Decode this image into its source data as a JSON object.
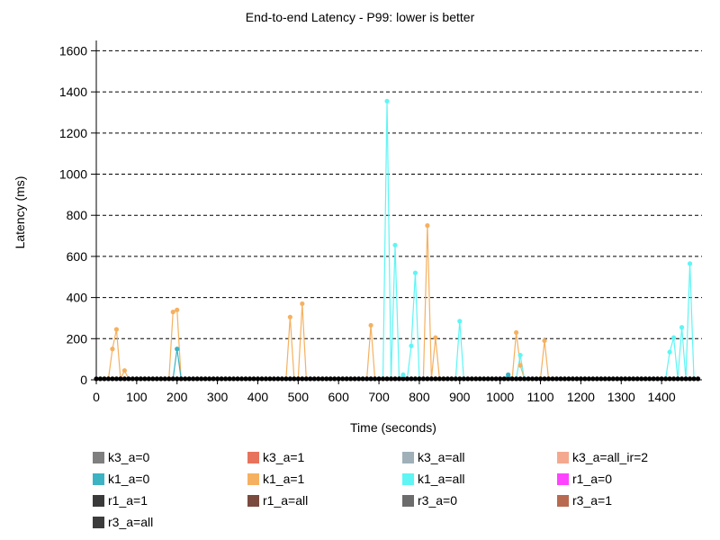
{
  "chart_data": {
    "type": "line",
    "title": "End-to-end Latency - P99: lower is better",
    "xlabel": "Time (seconds)",
    "ylabel": "Latency (ms)",
    "xlim": [
      0,
      1500
    ],
    "ylim": [
      0,
      1650
    ],
    "xticks": [
      0,
      100,
      200,
      300,
      400,
      500,
      600,
      700,
      800,
      900,
      1000,
      1100,
      1200,
      1300,
      1400
    ],
    "yticks": [
      0,
      200,
      400,
      600,
      800,
      1000,
      1200,
      1400,
      1600
    ],
    "grid": "horizontal dashed",
    "baseline": {
      "x_start": 0,
      "x_end": 1490,
      "x_step": 10,
      "value": 5
    },
    "series": [
      {
        "name": "k3_a=0",
        "color": "#7f7f7f",
        "points": []
      },
      {
        "name": "k3_a=1",
        "color": "#e8735c",
        "points": []
      },
      {
        "name": "k3_a=all",
        "color": "#9fb0b8",
        "points": []
      },
      {
        "name": "k3_a=all_ir=2",
        "color": "#f4a98f",
        "points": []
      },
      {
        "name": "k1_a=0",
        "color": "#3bb3c3",
        "points": [
          [
            190,
            5
          ],
          [
            200,
            150
          ],
          [
            210,
            5
          ],
          [
            1010,
            5
          ],
          [
            1020,
            25
          ],
          [
            1030,
            5
          ]
        ]
      },
      {
        "name": "k1_a=1",
        "color": "#f5b160",
        "points": [
          [
            30,
            5
          ],
          [
            40,
            150
          ],
          [
            50,
            245
          ],
          [
            60,
            5
          ],
          [
            70,
            45
          ],
          [
            80,
            5
          ],
          [
            180,
            5
          ],
          [
            190,
            330
          ],
          [
            200,
            340
          ],
          [
            210,
            5
          ],
          [
            470,
            5
          ],
          [
            480,
            305
          ],
          [
            490,
            5
          ],
          [
            500,
            5
          ],
          [
            510,
            370
          ],
          [
            520,
            5
          ],
          [
            670,
            5
          ],
          [
            680,
            265
          ],
          [
            690,
            5
          ],
          [
            810,
            5
          ],
          [
            820,
            750
          ],
          [
            830,
            5
          ],
          [
            840,
            205
          ],
          [
            850,
            5
          ],
          [
            1030,
            5
          ],
          [
            1040,
            230
          ],
          [
            1050,
            70
          ],
          [
            1060,
            5
          ],
          [
            1100,
            5
          ],
          [
            1110,
            190
          ],
          [
            1120,
            5
          ]
        ]
      },
      {
        "name": "k1_a=all",
        "color": "#5ff5f5",
        "points": [
          [
            710,
            5
          ],
          [
            720,
            1355
          ],
          [
            730,
            5
          ],
          [
            740,
            655
          ],
          [
            750,
            5
          ],
          [
            760,
            25
          ],
          [
            770,
            5
          ],
          [
            780,
            165
          ],
          [
            790,
            520
          ],
          [
            800,
            5
          ],
          [
            890,
            5
          ],
          [
            900,
            285
          ],
          [
            910,
            5
          ],
          [
            1040,
            5
          ],
          [
            1050,
            120
          ],
          [
            1060,
            5
          ],
          [
            1410,
            5
          ],
          [
            1420,
            135
          ],
          [
            1430,
            205
          ],
          [
            1440,
            5
          ],
          [
            1450,
            255
          ],
          [
            1460,
            5
          ],
          [
            1470,
            565
          ],
          [
            1480,
            5
          ]
        ]
      },
      {
        "name": "r1_a=0",
        "color": "#ff44ff",
        "points": []
      },
      {
        "name": "r1_a=1",
        "color": "#3a3a3a",
        "points": []
      },
      {
        "name": "r1_a=all",
        "color": "#7a4a3e",
        "points": []
      },
      {
        "name": "r3_a=0",
        "color": "#6c6c6c",
        "points": []
      },
      {
        "name": "r3_a=1",
        "color": "#b86a50",
        "points": []
      },
      {
        "name": "r3_a=all",
        "color": "#3c3c3c",
        "points": []
      }
    ]
  }
}
